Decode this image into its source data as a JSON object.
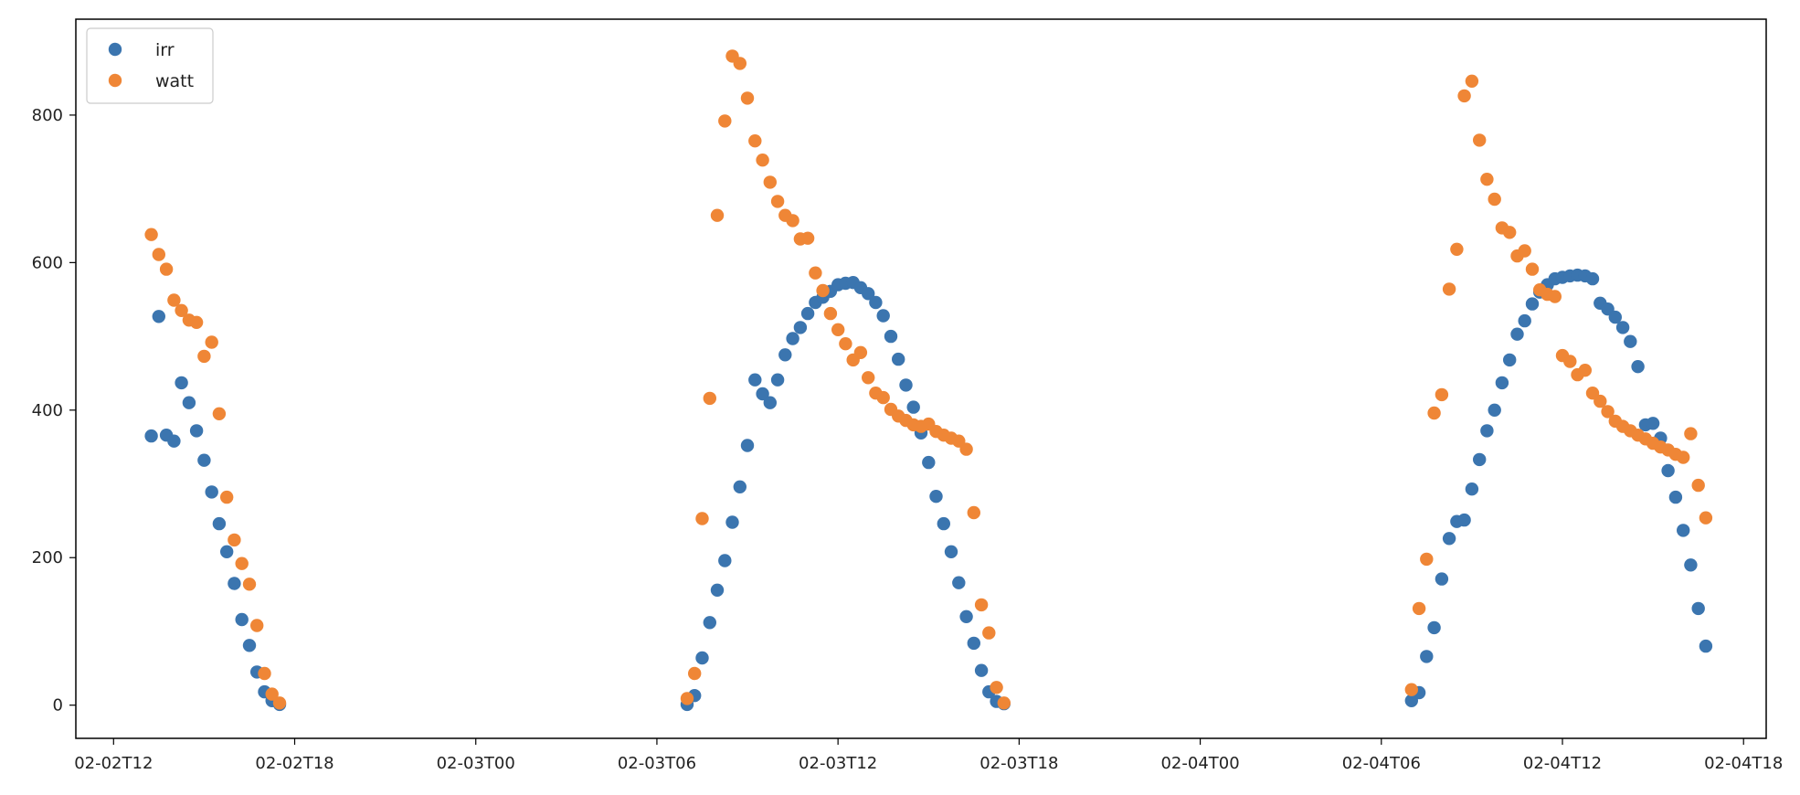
{
  "chart_data": {
    "type": "scatter",
    "title": "",
    "xlabel": "",
    "ylabel": "",
    "xlim": [
      "2024-02-02T10:45",
      "2024-02-04T18:45"
    ],
    "ylim": [
      -45,
      930
    ],
    "x_ticks": [
      {
        "t": "2024-02-02T12:00",
        "label": "02-02T12"
      },
      {
        "t": "2024-02-02T18:00",
        "label": "02-02T18"
      },
      {
        "t": "2024-02-03T00:00",
        "label": "02-03T00"
      },
      {
        "t": "2024-02-03T06:00",
        "label": "02-03T06"
      },
      {
        "t": "2024-02-03T12:00",
        "label": "02-03T12"
      },
      {
        "t": "2024-02-03T18:00",
        "label": "02-03T18"
      },
      {
        "t": "2024-02-04T00:00",
        "label": "02-04T00"
      },
      {
        "t": "2024-02-04T06:00",
        "label": "02-04T06"
      },
      {
        "t": "2024-02-04T12:00",
        "label": "02-04T12"
      },
      {
        "t": "2024-02-04T18:00",
        "label": "02-04T18"
      }
    ],
    "y_ticks": [
      0,
      200,
      400,
      600,
      800
    ],
    "grid": false,
    "legend": "top-left",
    "series": [
      {
        "name": "irr",
        "color": "#3b75af",
        "points": [
          [
            "2024-02-02T13:15",
            365
          ],
          [
            "2024-02-02T13:30",
            527
          ],
          [
            "2024-02-02T13:45",
            366
          ],
          [
            "2024-02-02T14:00",
            358
          ],
          [
            "2024-02-02T14:15",
            437
          ],
          [
            "2024-02-02T14:30",
            410
          ],
          [
            "2024-02-02T14:45",
            372
          ],
          [
            "2024-02-02T15:00",
            332
          ],
          [
            "2024-02-02T15:15",
            289
          ],
          [
            "2024-02-02T15:30",
            246
          ],
          [
            "2024-02-02T15:45",
            208
          ],
          [
            "2024-02-02T16:00",
            165
          ],
          [
            "2024-02-02T16:15",
            116
          ],
          [
            "2024-02-02T16:30",
            81
          ],
          [
            "2024-02-02T16:45",
            45
          ],
          [
            "2024-02-02T17:00",
            18
          ],
          [
            "2024-02-02T17:15",
            6
          ],
          [
            "2024-02-02T17:30",
            1
          ],
          [
            "2024-02-03T07:00",
            1
          ],
          [
            "2024-02-03T07:15",
            13
          ],
          [
            "2024-02-03T07:30",
            64
          ],
          [
            "2024-02-03T07:45",
            112
          ],
          [
            "2024-02-03T08:00",
            156
          ],
          [
            "2024-02-03T08:15",
            196
          ],
          [
            "2024-02-03T08:30",
            248
          ],
          [
            "2024-02-03T08:45",
            296
          ],
          [
            "2024-02-03T09:00",
            352
          ],
          [
            "2024-02-03T09:15",
            441
          ],
          [
            "2024-02-03T09:30",
            422
          ],
          [
            "2024-02-03T09:45",
            410
          ],
          [
            "2024-02-03T10:00",
            441
          ],
          [
            "2024-02-03T10:15",
            475
          ],
          [
            "2024-02-03T10:30",
            497
          ],
          [
            "2024-02-03T10:45",
            512
          ],
          [
            "2024-02-03T11:00",
            531
          ],
          [
            "2024-02-03T11:15",
            546
          ],
          [
            "2024-02-03T11:30",
            553
          ],
          [
            "2024-02-03T11:45",
            561
          ],
          [
            "2024-02-03T12:00",
            570
          ],
          [
            "2024-02-03T12:15",
            572
          ],
          [
            "2024-02-03T12:30",
            573
          ],
          [
            "2024-02-03T12:45",
            566
          ],
          [
            "2024-02-03T13:00",
            558
          ],
          [
            "2024-02-03T13:15",
            546
          ],
          [
            "2024-02-03T13:30",
            528
          ],
          [
            "2024-02-03T13:45",
            500
          ],
          [
            "2024-02-03T14:00",
            469
          ],
          [
            "2024-02-03T14:15",
            434
          ],
          [
            "2024-02-03T14:30",
            404
          ],
          [
            "2024-02-03T14:45",
            369
          ],
          [
            "2024-02-03T15:00",
            329
          ],
          [
            "2024-02-03T15:15",
            283
          ],
          [
            "2024-02-03T15:30",
            246
          ],
          [
            "2024-02-03T15:45",
            208
          ],
          [
            "2024-02-03T16:00",
            166
          ],
          [
            "2024-02-03T16:15",
            120
          ],
          [
            "2024-02-03T16:30",
            84
          ],
          [
            "2024-02-03T16:45",
            47
          ],
          [
            "2024-02-03T17:00",
            18
          ],
          [
            "2024-02-03T17:15",
            5
          ],
          [
            "2024-02-03T17:30",
            2
          ],
          [
            "2024-02-04T07:00",
            6
          ],
          [
            "2024-02-04T07:15",
            17
          ],
          [
            "2024-02-04T07:30",
            66
          ],
          [
            "2024-02-04T07:45",
            105
          ],
          [
            "2024-02-04T08:00",
            171
          ],
          [
            "2024-02-04T08:15",
            226
          ],
          [
            "2024-02-04T08:30",
            249
          ],
          [
            "2024-02-04T08:45",
            251
          ],
          [
            "2024-02-04T09:00",
            293
          ],
          [
            "2024-02-04T09:15",
            333
          ],
          [
            "2024-02-04T09:30",
            372
          ],
          [
            "2024-02-04T09:45",
            400
          ],
          [
            "2024-02-04T10:00",
            437
          ],
          [
            "2024-02-04T10:15",
            468
          ],
          [
            "2024-02-04T10:30",
            503
          ],
          [
            "2024-02-04T10:45",
            521
          ],
          [
            "2024-02-04T11:00",
            544
          ],
          [
            "2024-02-04T11:15",
            560
          ],
          [
            "2024-02-04T11:30",
            570
          ],
          [
            "2024-02-04T11:45",
            578
          ],
          [
            "2024-02-04T12:00",
            580
          ],
          [
            "2024-02-04T12:15",
            582
          ],
          [
            "2024-02-04T12:30",
            583
          ],
          [
            "2024-02-04T12:45",
            582
          ],
          [
            "2024-02-04T13:00",
            578
          ],
          [
            "2024-02-04T13:15",
            545
          ],
          [
            "2024-02-04T13:30",
            537
          ],
          [
            "2024-02-04T13:45",
            526
          ],
          [
            "2024-02-04T14:00",
            512
          ],
          [
            "2024-02-04T14:15",
            493
          ],
          [
            "2024-02-04T14:30",
            459
          ],
          [
            "2024-02-04T14:45",
            380
          ],
          [
            "2024-02-04T15:00",
            382
          ],
          [
            "2024-02-04T15:15",
            362
          ],
          [
            "2024-02-04T15:30",
            318
          ],
          [
            "2024-02-04T15:45",
            282
          ],
          [
            "2024-02-04T16:00",
            237
          ],
          [
            "2024-02-04T16:15",
            190
          ],
          [
            "2024-02-04T16:30",
            131
          ],
          [
            "2024-02-04T16:45",
            80
          ]
        ]
      },
      {
        "name": "watt",
        "color": "#ef8636",
        "points": [
          [
            "2024-02-02T13:15",
            638
          ],
          [
            "2024-02-02T13:30",
            611
          ],
          [
            "2024-02-02T13:45",
            591
          ],
          [
            "2024-02-02T14:00",
            549
          ],
          [
            "2024-02-02T14:15",
            535
          ],
          [
            "2024-02-02T14:30",
            522
          ],
          [
            "2024-02-02T14:45",
            519
          ],
          [
            "2024-02-02T15:00",
            473
          ],
          [
            "2024-02-02T15:15",
            492
          ],
          [
            "2024-02-02T15:30",
            395
          ],
          [
            "2024-02-02T15:45",
            282
          ],
          [
            "2024-02-02T16:00",
            224
          ],
          [
            "2024-02-02T16:15",
            192
          ],
          [
            "2024-02-02T16:30",
            164
          ],
          [
            "2024-02-02T16:45",
            108
          ],
          [
            "2024-02-02T17:00",
            43
          ],
          [
            "2024-02-02T17:15",
            15
          ],
          [
            "2024-02-02T17:30",
            3
          ],
          [
            "2024-02-03T07:00",
            9
          ],
          [
            "2024-02-03T07:15",
            43
          ],
          [
            "2024-02-03T07:30",
            253
          ],
          [
            "2024-02-03T07:45",
            416
          ],
          [
            "2024-02-03T08:00",
            664
          ],
          [
            "2024-02-03T08:15",
            792
          ],
          [
            "2024-02-03T08:30",
            880
          ],
          [
            "2024-02-03T08:45",
            870
          ],
          [
            "2024-02-03T09:00",
            823
          ],
          [
            "2024-02-03T09:15",
            765
          ],
          [
            "2024-02-03T09:30",
            739
          ],
          [
            "2024-02-03T09:45",
            709
          ],
          [
            "2024-02-03T10:00",
            683
          ],
          [
            "2024-02-03T10:15",
            664
          ],
          [
            "2024-02-03T10:30",
            657
          ],
          [
            "2024-02-03T10:45",
            632
          ],
          [
            "2024-02-03T11:00",
            633
          ],
          [
            "2024-02-03T11:15",
            586
          ],
          [
            "2024-02-03T11:30",
            562
          ],
          [
            "2024-02-03T11:45",
            531
          ],
          [
            "2024-02-03T12:00",
            509
          ],
          [
            "2024-02-03T12:15",
            490
          ],
          [
            "2024-02-03T12:30",
            468
          ],
          [
            "2024-02-03T12:45",
            478
          ],
          [
            "2024-02-03T13:00",
            444
          ],
          [
            "2024-02-03T13:15",
            423
          ],
          [
            "2024-02-03T13:30",
            417
          ],
          [
            "2024-02-03T13:45",
            401
          ],
          [
            "2024-02-03T14:00",
            392
          ],
          [
            "2024-02-03T14:15",
            386
          ],
          [
            "2024-02-03T14:30",
            380
          ],
          [
            "2024-02-03T14:45",
            378
          ],
          [
            "2024-02-03T15:00",
            381
          ],
          [
            "2024-02-03T15:15",
            371
          ],
          [
            "2024-02-03T15:30",
            366
          ],
          [
            "2024-02-03T15:45",
            362
          ],
          [
            "2024-02-03T16:00",
            358
          ],
          [
            "2024-02-03T16:15",
            347
          ],
          [
            "2024-02-03T16:30",
            261
          ],
          [
            "2024-02-03T16:45",
            136
          ],
          [
            "2024-02-03T17:00",
            98
          ],
          [
            "2024-02-03T17:15",
            24
          ],
          [
            "2024-02-03T17:30",
            3
          ],
          [
            "2024-02-04T07:00",
            21
          ],
          [
            "2024-02-04T07:15",
            131
          ],
          [
            "2024-02-04T07:30",
            198
          ],
          [
            "2024-02-04T07:45",
            396
          ],
          [
            "2024-02-04T08:00",
            421
          ],
          [
            "2024-02-04T08:15",
            564
          ],
          [
            "2024-02-04T08:30",
            618
          ],
          [
            "2024-02-04T08:45",
            826
          ],
          [
            "2024-02-04T09:00",
            846
          ],
          [
            "2024-02-04T09:15",
            766
          ],
          [
            "2024-02-04T09:30",
            713
          ],
          [
            "2024-02-04T09:45",
            686
          ],
          [
            "2024-02-04T10:00",
            647
          ],
          [
            "2024-02-04T10:15",
            641
          ],
          [
            "2024-02-04T10:30",
            609
          ],
          [
            "2024-02-04T10:45",
            616
          ],
          [
            "2024-02-04T11:00",
            591
          ],
          [
            "2024-02-04T11:15",
            563
          ],
          [
            "2024-02-04T11:30",
            557
          ],
          [
            "2024-02-04T11:45",
            554
          ],
          [
            "2024-02-04T12:00",
            474
          ],
          [
            "2024-02-04T12:15",
            466
          ],
          [
            "2024-02-04T12:30",
            448
          ],
          [
            "2024-02-04T12:45",
            454
          ],
          [
            "2024-02-04T13:00",
            423
          ],
          [
            "2024-02-04T13:15",
            412
          ],
          [
            "2024-02-04T13:30",
            398
          ],
          [
            "2024-02-04T13:45",
            385
          ],
          [
            "2024-02-04T14:00",
            378
          ],
          [
            "2024-02-04T14:15",
            372
          ],
          [
            "2024-02-04T14:30",
            366
          ],
          [
            "2024-02-04T14:45",
            361
          ],
          [
            "2024-02-04T15:00",
            355
          ],
          [
            "2024-02-04T15:15",
            350
          ],
          [
            "2024-02-04T15:30",
            346
          ],
          [
            "2024-02-04T15:45",
            340
          ],
          [
            "2024-02-04T16:00",
            336
          ],
          [
            "2024-02-04T16:15",
            368
          ],
          [
            "2024-02-04T16:30",
            298
          ],
          [
            "2024-02-04T16:45",
            254
          ]
        ]
      }
    ]
  }
}
